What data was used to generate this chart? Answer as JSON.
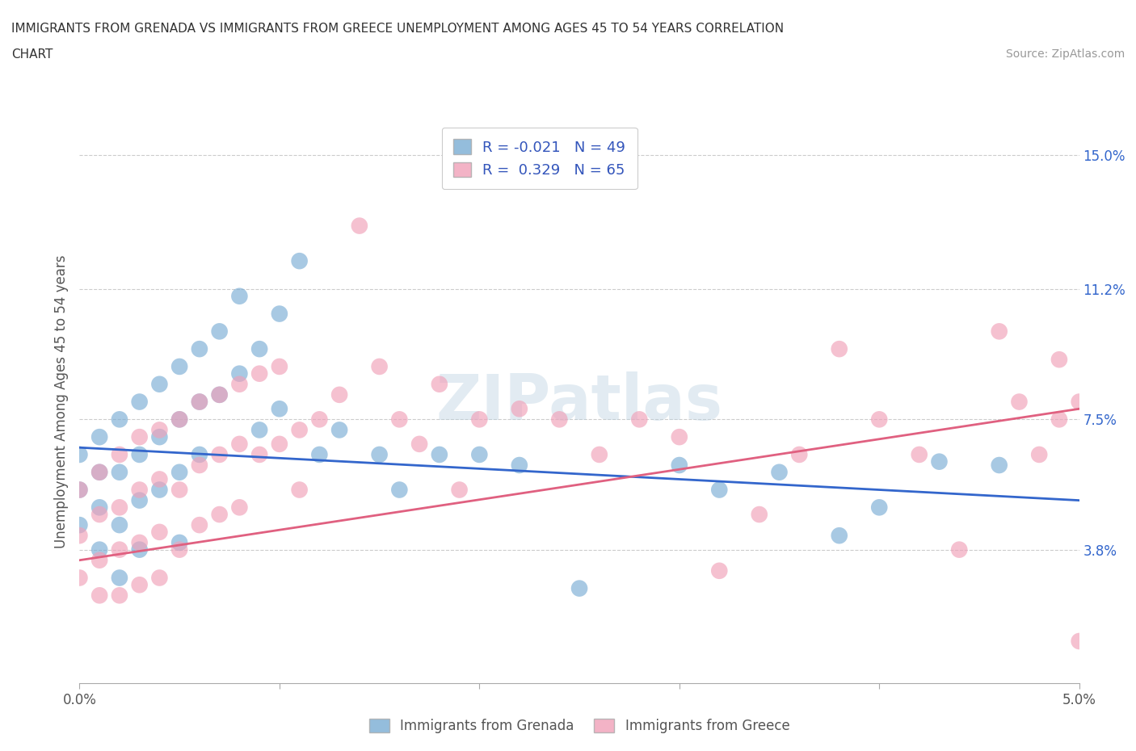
{
  "title_line1": "IMMIGRANTS FROM GRENADA VS IMMIGRANTS FROM GREECE UNEMPLOYMENT AMONG AGES 45 TO 54 YEARS CORRELATION",
  "title_line2": "CHART",
  "source_text": "Source: ZipAtlas.com",
  "ylabel": "Unemployment Among Ages 45 to 54 years",
  "xlim": [
    0.0,
    0.05
  ],
  "ylim": [
    0.0,
    0.16
  ],
  "ytick_labels": [
    "3.8%",
    "7.5%",
    "11.2%",
    "15.0%"
  ],
  "ytick_values": [
    0.038,
    0.075,
    0.112,
    0.15
  ],
  "grenada_color": "#7aadd4",
  "greece_color": "#f0a0b8",
  "trend_grenada_color": "#3366cc",
  "trend_greece_color": "#e06080",
  "watermark": "ZIPatlas",
  "background_color": "#ffffff",
  "grid_color": "#cccccc",
  "grenada_R": -0.021,
  "grenada_N": 49,
  "greece_R": 0.329,
  "greece_N": 65,
  "grenada_scatter_x": [
    0.0,
    0.0,
    0.0,
    0.001,
    0.001,
    0.001,
    0.001,
    0.002,
    0.002,
    0.002,
    0.002,
    0.003,
    0.003,
    0.003,
    0.003,
    0.004,
    0.004,
    0.004,
    0.005,
    0.005,
    0.005,
    0.005,
    0.006,
    0.006,
    0.006,
    0.007,
    0.007,
    0.008,
    0.008,
    0.009,
    0.009,
    0.01,
    0.01,
    0.011,
    0.012,
    0.013,
    0.015,
    0.016,
    0.018,
    0.02,
    0.022,
    0.025,
    0.03,
    0.032,
    0.035,
    0.038,
    0.04,
    0.043,
    0.046
  ],
  "grenada_scatter_y": [
    0.065,
    0.055,
    0.045,
    0.07,
    0.06,
    0.05,
    0.038,
    0.075,
    0.06,
    0.045,
    0.03,
    0.08,
    0.065,
    0.052,
    0.038,
    0.085,
    0.07,
    0.055,
    0.09,
    0.075,
    0.06,
    0.04,
    0.095,
    0.08,
    0.065,
    0.1,
    0.082,
    0.11,
    0.088,
    0.095,
    0.072,
    0.105,
    0.078,
    0.12,
    0.065,
    0.072,
    0.065,
    0.055,
    0.065,
    0.065,
    0.062,
    0.027,
    0.062,
    0.055,
    0.06,
    0.042,
    0.05,
    0.063,
    0.062
  ],
  "greece_scatter_x": [
    0.0,
    0.0,
    0.0,
    0.001,
    0.001,
    0.001,
    0.001,
    0.002,
    0.002,
    0.002,
    0.002,
    0.003,
    0.003,
    0.003,
    0.003,
    0.004,
    0.004,
    0.004,
    0.004,
    0.005,
    0.005,
    0.005,
    0.006,
    0.006,
    0.006,
    0.007,
    0.007,
    0.007,
    0.008,
    0.008,
    0.008,
    0.009,
    0.009,
    0.01,
    0.01,
    0.011,
    0.011,
    0.012,
    0.013,
    0.014,
    0.015,
    0.016,
    0.017,
    0.018,
    0.019,
    0.02,
    0.022,
    0.024,
    0.026,
    0.028,
    0.03,
    0.032,
    0.034,
    0.036,
    0.038,
    0.04,
    0.042,
    0.044,
    0.046,
    0.047,
    0.048,
    0.049,
    0.049,
    0.05,
    0.05
  ],
  "greece_scatter_y": [
    0.055,
    0.042,
    0.03,
    0.06,
    0.048,
    0.035,
    0.025,
    0.065,
    0.05,
    0.038,
    0.025,
    0.07,
    0.055,
    0.04,
    0.028,
    0.072,
    0.058,
    0.043,
    0.03,
    0.075,
    0.055,
    0.038,
    0.08,
    0.062,
    0.045,
    0.082,
    0.065,
    0.048,
    0.085,
    0.068,
    0.05,
    0.088,
    0.065,
    0.09,
    0.068,
    0.072,
    0.055,
    0.075,
    0.082,
    0.13,
    0.09,
    0.075,
    0.068,
    0.085,
    0.055,
    0.075,
    0.078,
    0.075,
    0.065,
    0.075,
    0.07,
    0.032,
    0.048,
    0.065,
    0.095,
    0.075,
    0.065,
    0.038,
    0.1,
    0.08,
    0.065,
    0.092,
    0.075,
    0.08,
    0.012
  ]
}
